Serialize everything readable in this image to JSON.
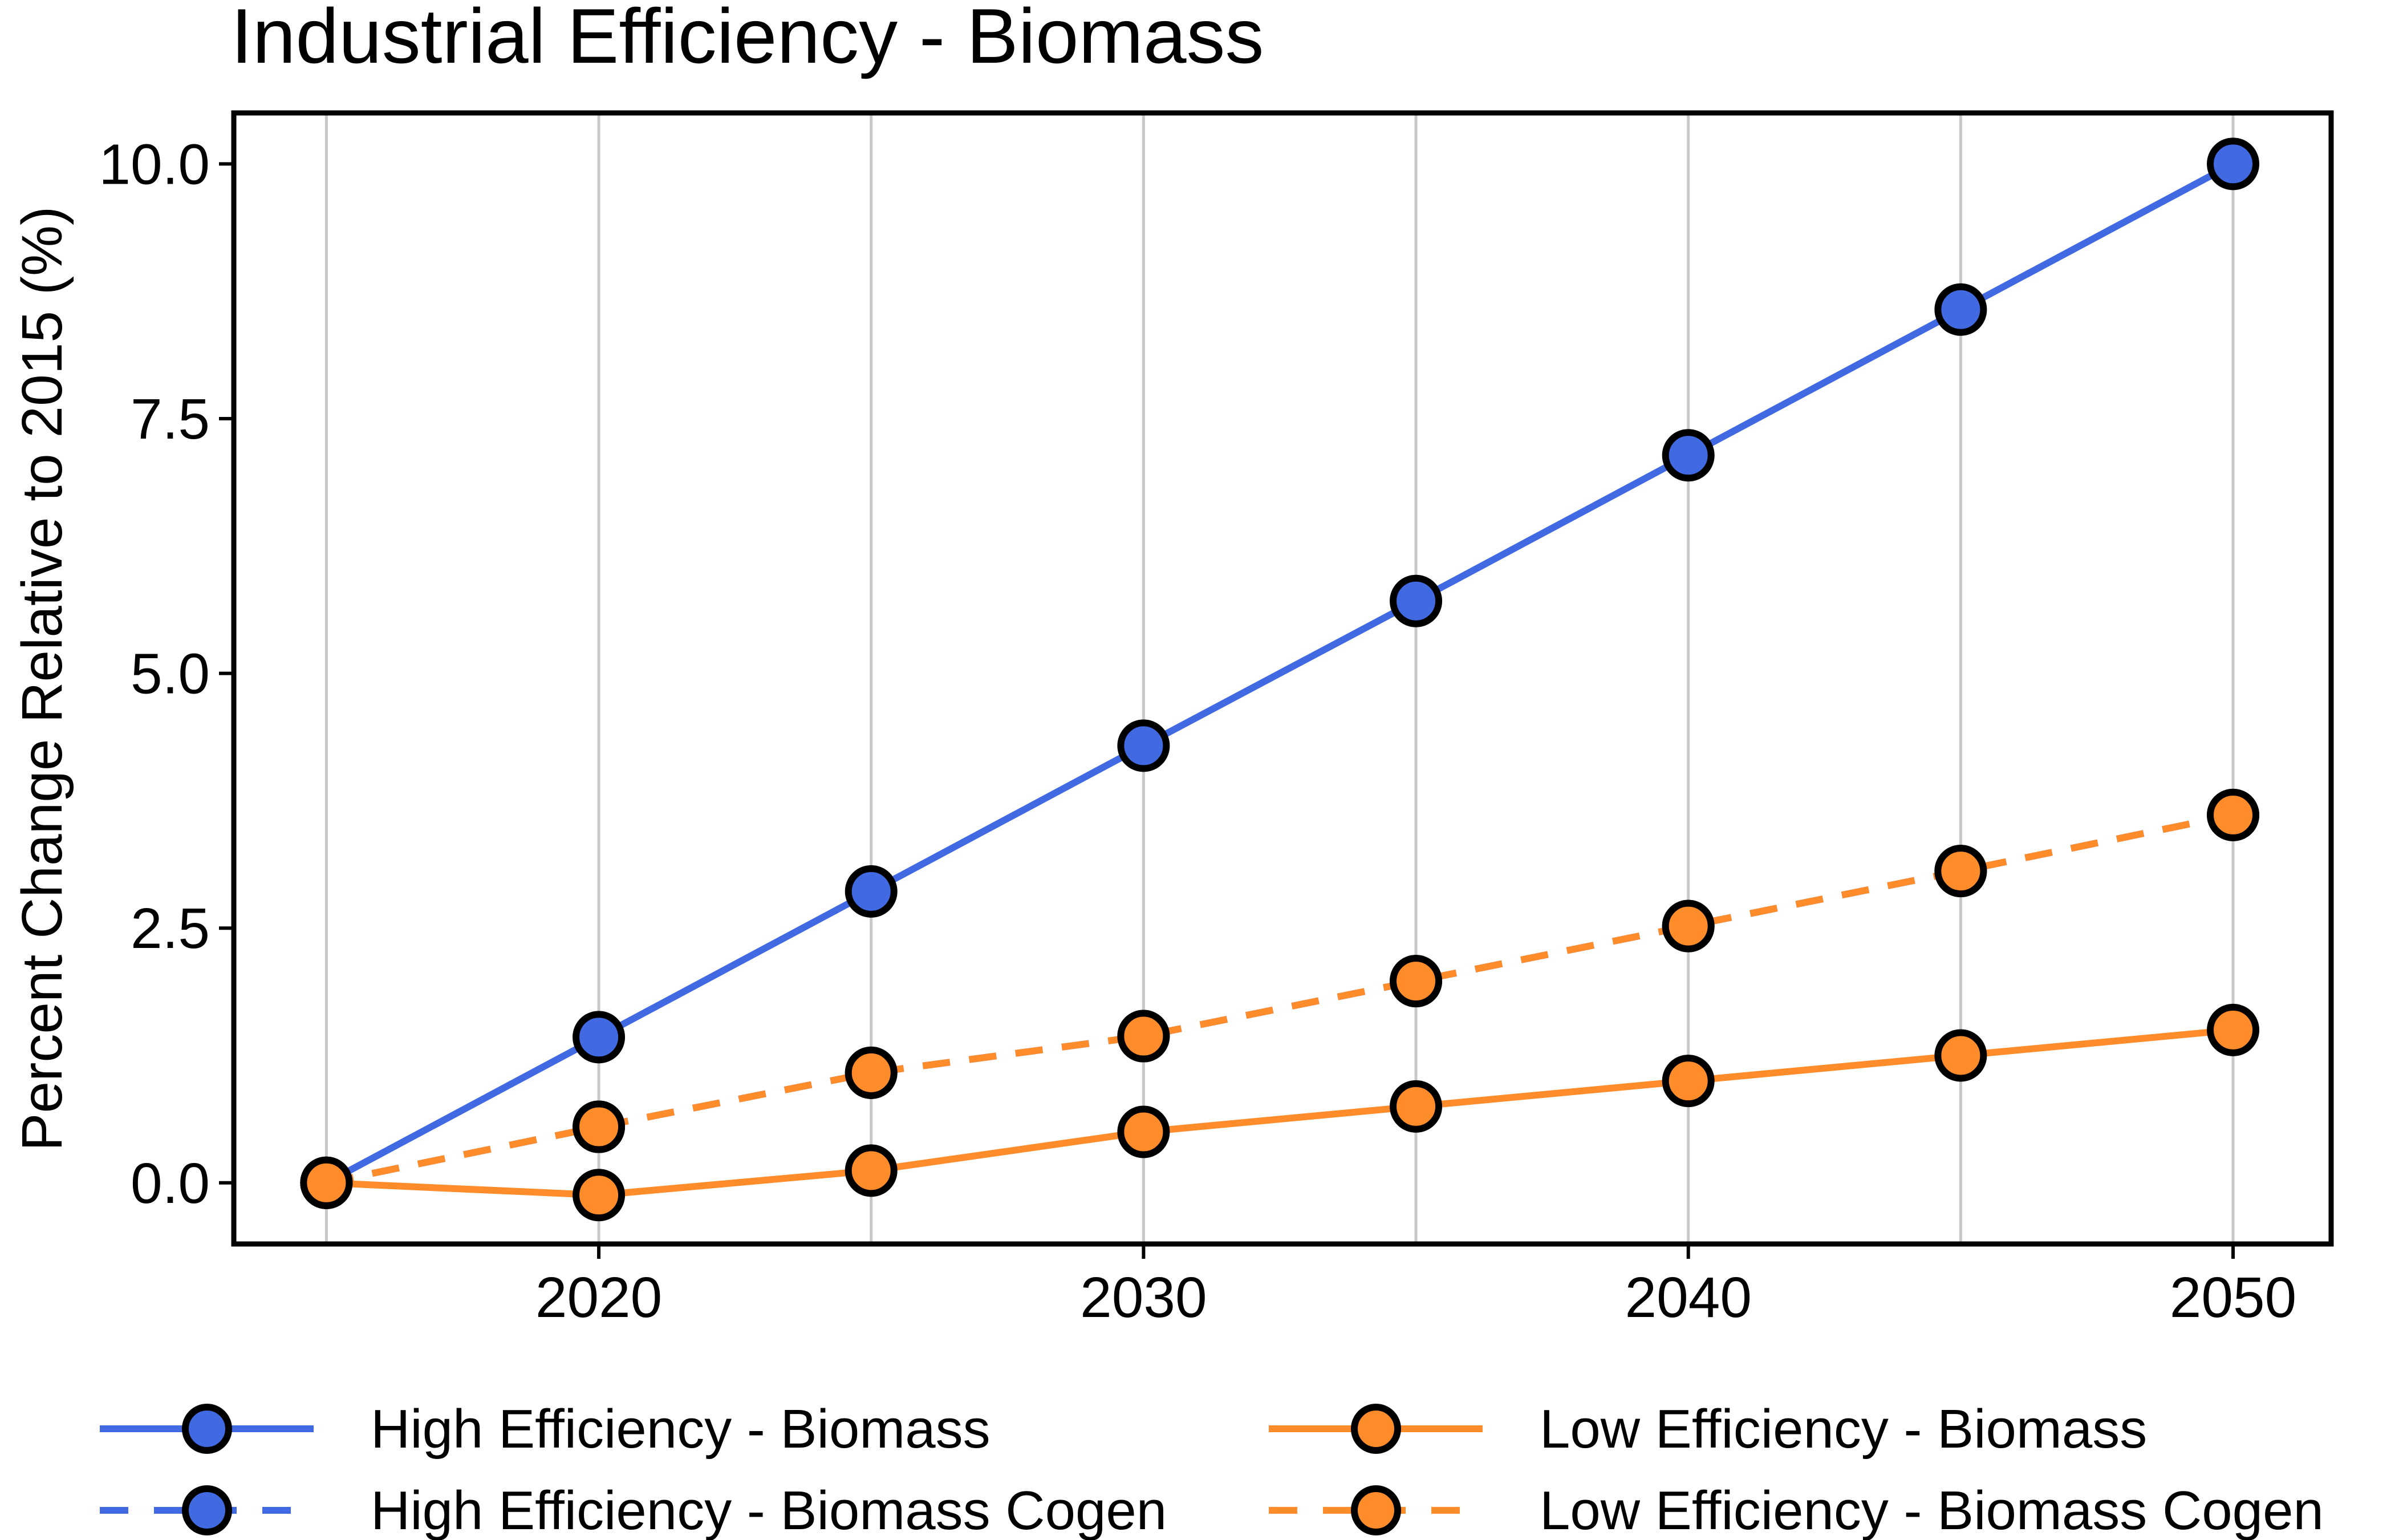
{
  "chart_data": {
    "type": "line",
    "title": "Industrial Efficiency - Biomass",
    "xlabel": "",
    "ylabel": "Percent Change Relative to 2015 (%)",
    "xlim": [
      2013.3,
      2051.8
    ],
    "ylim": [
      -0.6,
      10.5
    ],
    "x_ticks": [
      2020,
      2030,
      2040,
      2050
    ],
    "y_ticks": [
      0.0,
      2.5,
      5.0,
      7.5,
      10.0
    ],
    "y_tick_labels": [
      "0.0",
      "2.5",
      "5.0",
      "7.5",
      "10.0"
    ],
    "x": [
      2015,
      2020,
      2025,
      2030,
      2035,
      2040,
      2045,
      2050
    ],
    "grid": "vertical",
    "legend_position": "bottom",
    "series": [
      {
        "name": "High Efficiency - Biomass",
        "color": "#4169e1",
        "line_style": "solid",
        "values": [
          0.0,
          1.43,
          2.86,
          4.29,
          5.71,
          7.14,
          8.57,
          10.0
        ]
      },
      {
        "name": "High Efficiency - Biomass Cogen",
        "color": "#4169e1",
        "line_style": "dashed",
        "values": [
          0.0,
          0.55,
          1.08,
          1.44,
          1.98,
          2.52,
          3.06,
          3.61
        ]
      },
      {
        "name": "Low Efficiency - Biomass",
        "color": "#ff8c2a",
        "line_style": "solid",
        "values": [
          0.0,
          -0.12,
          0.12,
          0.5,
          0.75,
          1.0,
          1.25,
          1.5
        ]
      },
      {
        "name": "Low Efficiency - Biomass Cogen",
        "color": "#ff8c2a",
        "line_style": "dashed",
        "values": [
          0.0,
          0.55,
          1.08,
          1.44,
          1.98,
          2.52,
          3.06,
          3.61
        ]
      }
    ]
  }
}
